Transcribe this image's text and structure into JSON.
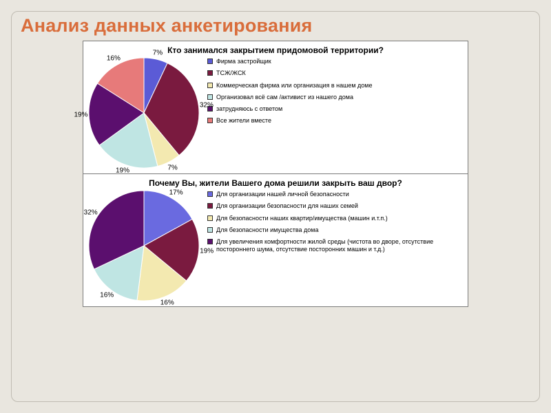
{
  "slide": {
    "title": "Анализ данных анкетирования",
    "title_color": "#d96d3b",
    "background": "#e9e6df",
    "frame_border": "#bfbbb2"
  },
  "chart1": {
    "type": "pie",
    "title": "Кто занимался закрытием придомовой территории?",
    "diameter": 160,
    "start_angle": -90,
    "slices": [
      {
        "label": "Фирма застройщик",
        "value": 7,
        "color": "#5b5bd6"
      },
      {
        "label": "ТСЖ/ЖСК",
        "value": 32,
        "color": "#7a1a3f"
      },
      {
        "label": "Коммерческая фирма или организация в нашем доме",
        "value": 7,
        "color": "#f3e9b0"
      },
      {
        "label": "Организовал всё сам /активист из нашего дома",
        "value": 19,
        "color": "#bfe5e3"
      },
      {
        "label": "затрудняюсь с ответом",
        "value": 19,
        "color": "#5b0f6e"
      },
      {
        "label": "Все жители вместе",
        "value": 16,
        "color": "#e77a7a"
      }
    ],
    "label_color": "#000000",
    "stroke": "#ffffff"
  },
  "chart2": {
    "type": "pie",
    "title": "Почему Вы, жители Вашего дома решили закрыть ваш двор?",
    "diameter": 160,
    "start_angle": -90,
    "slices": [
      {
        "label": "Для организации нашей личной безопасности",
        "value": 17,
        "color": "#6a6ae0"
      },
      {
        "label": "Для организации безопасности для наших семей",
        "value": 19,
        "color": "#7a1a3f"
      },
      {
        "label": "Для безопасности наших квартир/имущества (машин и.т.п.)",
        "value": 16,
        "color": "#f3e9b0"
      },
      {
        "label": "Для безопасности имущества дома",
        "value": 16,
        "color": "#bfe5e3"
      },
      {
        "label": "Для увеличения комфортности жилой среды (чистота во дворе, отсутствие постороннего шума, отсутствие посторонних машин и т.д.)",
        "value": 32,
        "color": "#5b0f6e"
      }
    ],
    "label_color": "#000000",
    "stroke": "#ffffff"
  }
}
